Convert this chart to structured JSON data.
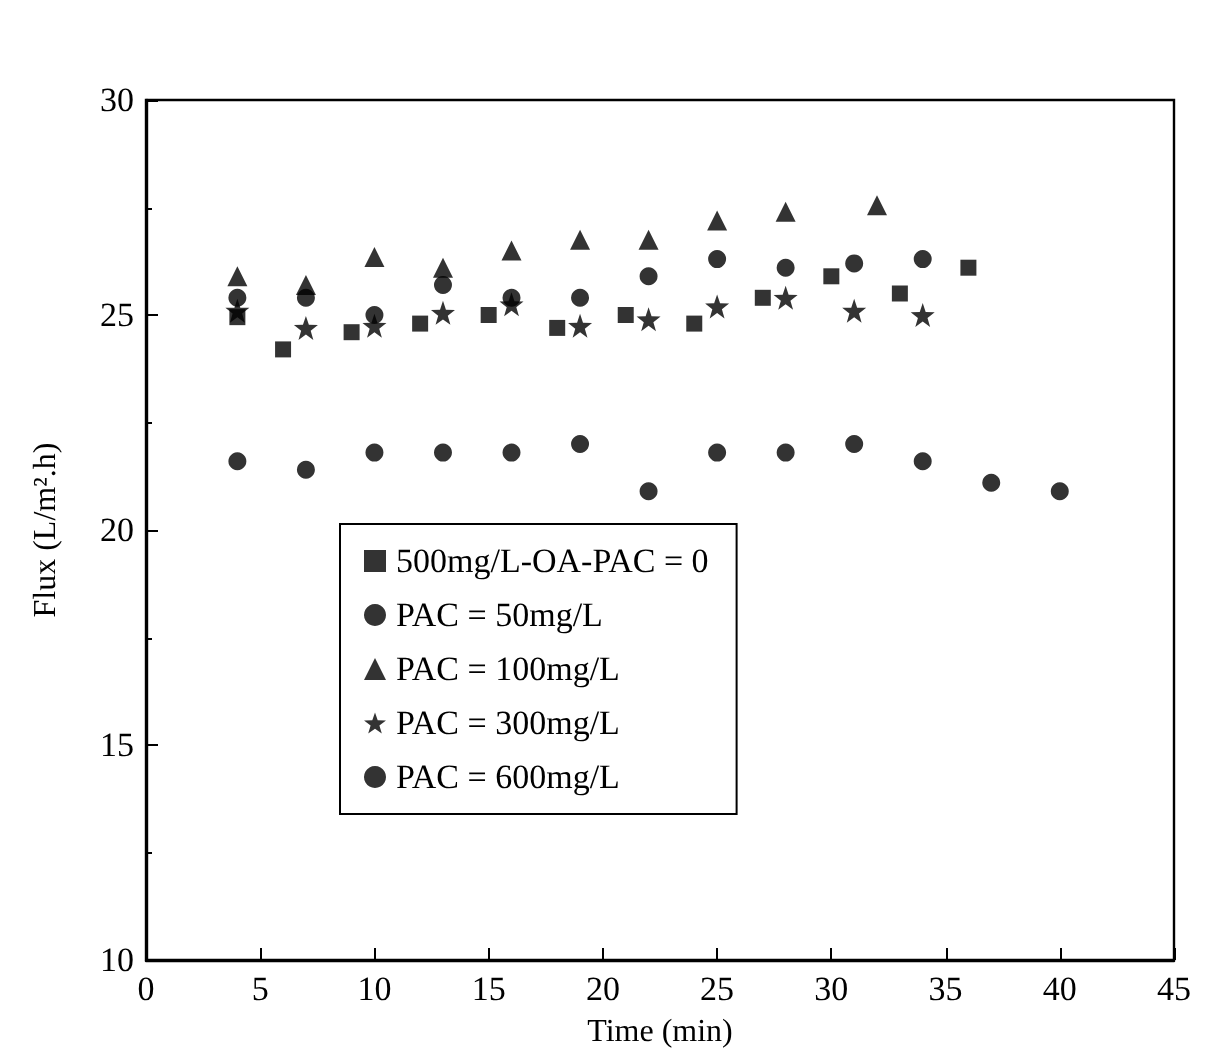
{
  "chart_data": {
    "type": "scatter",
    "xlabel": "Time (min)",
    "ylabel": "Flux (L/m².h)",
    "xlim": [
      0,
      45
    ],
    "xticks": [
      0,
      5,
      10,
      15,
      20,
      25,
      30,
      35,
      40,
      45
    ],
    "ylim": [
      10,
      30
    ],
    "yticks": [
      10,
      15,
      20,
      25,
      30
    ],
    "grid": false,
    "legend": "center",
    "series": [
      {
        "name": "500mg/L-OA-PAC = 0",
        "color": "#000000",
        "marker": "square",
        "x": [
          4,
          6,
          9,
          12,
          15,
          18,
          21,
          24,
          27,
          30,
          33,
          36
        ],
        "values": [
          24.95,
          24.2,
          24.6,
          24.8,
          25.0,
          24.7,
          25.0,
          24.8,
          25.4,
          25.9,
          25.5,
          26.1
        ]
      },
      {
        "name": "PAC = 50mg/L",
        "color": "#000000",
        "marker": "circle",
        "x": [
          4,
          7,
          10,
          13,
          16,
          19,
          22,
          25,
          28,
          31,
          34
        ],
        "values": [
          25.4,
          25.4,
          25.0,
          25.7,
          25.4,
          25.4,
          25.9,
          26.3,
          26.1,
          26.2,
          26.3
        ]
      },
      {
        "name": "PAC = 100mg/L",
        "color": "#000000",
        "marker": "triangle",
        "x": [
          4,
          7,
          10,
          13,
          16,
          19,
          22,
          25,
          28,
          32
        ],
        "values": [
          25.9,
          25.7,
          26.35,
          26.1,
          26.5,
          26.75,
          26.75,
          27.2,
          27.4,
          27.55
        ]
      },
      {
        "name": "PAC = 300mg/L",
        "color": "#000000",
        "marker": "star",
        "x": [
          4,
          7,
          10,
          13,
          16,
          19,
          22,
          25,
          28,
          31,
          34
        ],
        "values": [
          25.1,
          24.7,
          24.75,
          25.05,
          25.25,
          24.75,
          24.9,
          25.2,
          25.4,
          25.1,
          25.0
        ]
      },
      {
        "name": "PAC = 600mg/L",
        "color": "#000000",
        "marker": "circle",
        "x": [
          4,
          7,
          10,
          13,
          16,
          19,
          22,
          25,
          28,
          31,
          34,
          37,
          40
        ],
        "values": [
          21.6,
          21.4,
          21.8,
          21.8,
          21.8,
          22.0,
          20.9,
          21.8,
          21.8,
          22.0,
          21.6,
          21.1,
          20.9
        ]
      }
    ]
  }
}
